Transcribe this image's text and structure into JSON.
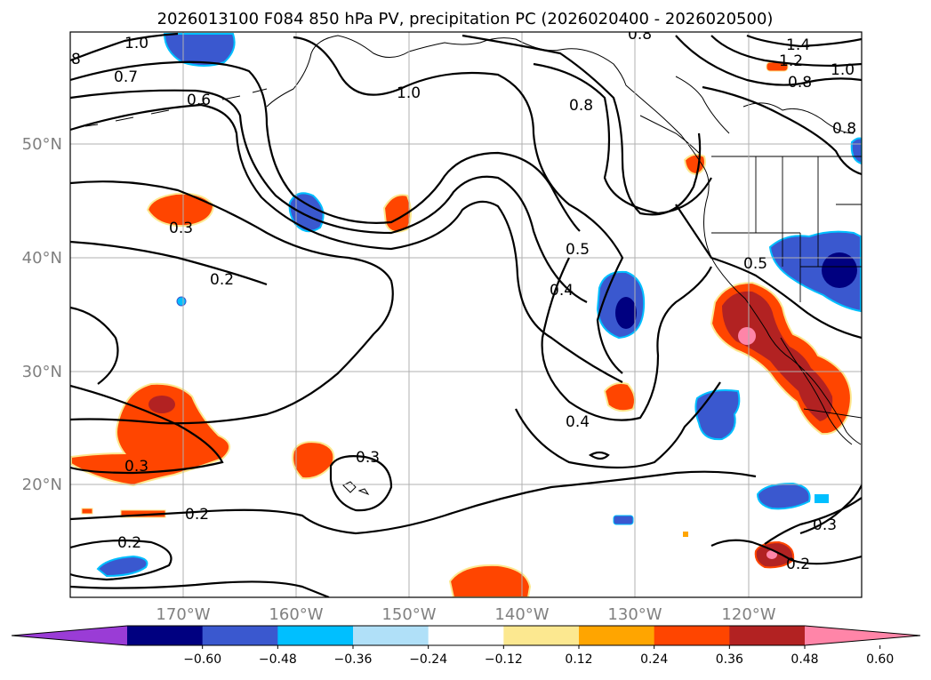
{
  "title": "2026013100 F084 850 hPa PV, precipitation PC (2026020400 - 2026020500)",
  "map": {
    "lat_labels": [
      "50°N",
      "40°N",
      "30°N",
      "20°N"
    ],
    "lon_labels": [
      "170°W",
      "160°W",
      "150°W",
      "140°W",
      "130°W",
      "120°W"
    ],
    "lat_values": [
      50,
      40,
      30,
      20
    ],
    "lon_values": [
      -170,
      -160,
      -150,
      -140,
      -130,
      -120
    ],
    "extent": {
      "lon_min": -180,
      "lon_max": -110,
      "lat_min": 10,
      "lat_max": 60
    },
    "gridlines": true
  },
  "contour_labels": [
    "1.0",
    "0.7",
    "0.6",
    "8",
    "1.0",
    "0.8",
    "0.8",
    "1.4",
    "1.2",
    "1.0",
    "0.8",
    "0.8",
    "0.3",
    "0.2",
    "0.5",
    "0.4",
    "0.5",
    "0.4",
    "0.3",
    "0.3",
    "0.2",
    "0.2",
    "0.3",
    "0.2"
  ],
  "colorbar": {
    "tick_labels": [
      "−0.60",
      "−0.48",
      "−0.36",
      "−0.24",
      "−0.12",
      "0.12",
      "0.24",
      "0.36",
      "0.48",
      "0.60"
    ],
    "levels": [
      -0.6,
      -0.48,
      -0.36,
      -0.24,
      -0.12,
      0.12,
      0.24,
      0.36,
      0.48,
      0.6
    ],
    "colors": [
      "#9a3cd6",
      "#000080",
      "#3a58cf",
      "#00bfff",
      "#b0e0f8",
      "#ffffff",
      "#fce890",
      "#ffa500",
      "#ff4500",
      "#b22222",
      "#ff85a8"
    ],
    "extend": "both"
  },
  "palette": {
    "contour": "#000000",
    "coast": "#000000",
    "grid": "#b0b0b0",
    "tick_text": "#808080"
  }
}
